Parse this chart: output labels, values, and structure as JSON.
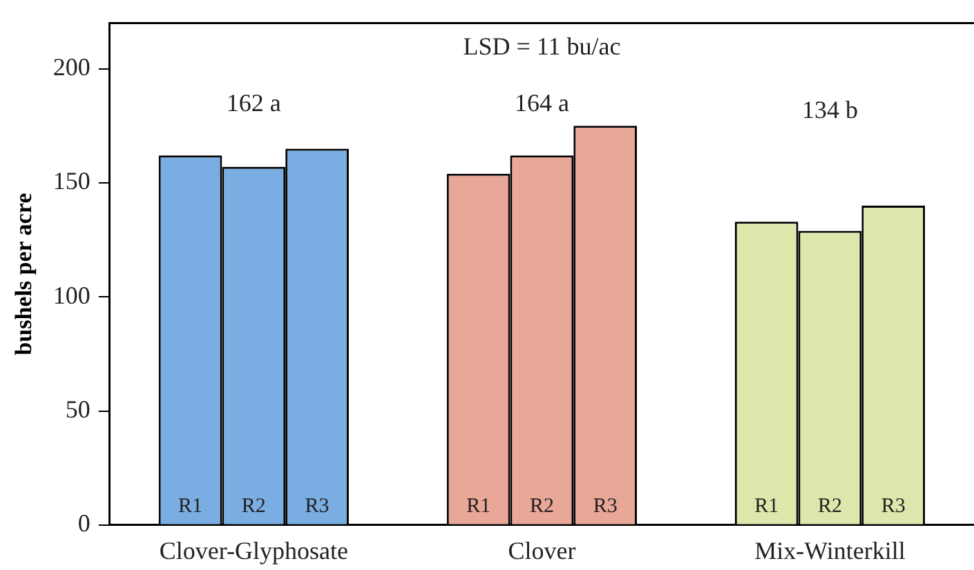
{
  "chart_data": {
    "type": "bar",
    "ylabel": "bushels per acre",
    "categories": [
      "Clover-Glyphosate",
      "Clover",
      "Mix-Winterkill"
    ],
    "series": [
      {
        "name": "R1",
        "colors": [
          "#7aade2",
          "#e8a797",
          "#dfe6ac"
        ],
        "values": [
          162,
          154,
          133
        ]
      },
      {
        "name": "R2",
        "colors": [
          "#7aade2",
          "#e8a797",
          "#dfe6ac"
        ],
        "values": [
          157,
          162,
          129
        ]
      },
      {
        "name": "R3",
        "colors": [
          "#7aade2",
          "#e8a797",
          "#dfe6ac"
        ],
        "values": [
          165,
          175,
          140
        ]
      }
    ],
    "ylim": [
      0,
      220
    ],
    "yticks": [
      0,
      50,
      100,
      150,
      200
    ],
    "grid": false,
    "legend": false,
    "annotations": [
      "LSD = 11 bu/ac",
      "162 a",
      "164 a",
      "134 b"
    ]
  }
}
